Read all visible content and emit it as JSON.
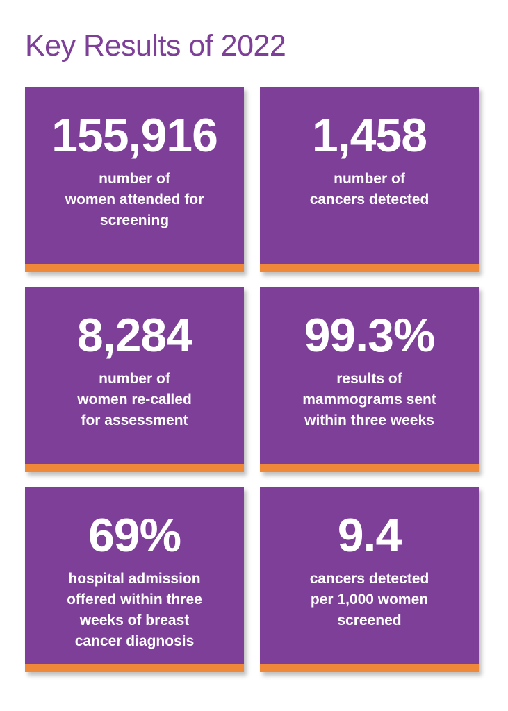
{
  "header": {
    "title": "Key Results of 2022"
  },
  "cards": [
    {
      "value": "155,916",
      "lines": [
        "number of",
        "women attended for",
        "screening"
      ]
    },
    {
      "value": "1,458",
      "lines": [
        "number of",
        "cancers detected"
      ]
    },
    {
      "value": "8,284",
      "lines": [
        "number of",
        "women re-called",
        "for assessment"
      ]
    },
    {
      "value": "99.3%",
      "lines": [
        "results of",
        "mammograms sent",
        "within three weeks"
      ]
    },
    {
      "value": "69%",
      "lines": [
        "hospital admission",
        "offered within three",
        "weeks of breast",
        "cancer diagnosis"
      ]
    },
    {
      "value": "9.4",
      "lines": [
        "cancers detected",
        "per 1,000 women",
        "screened"
      ]
    }
  ]
}
